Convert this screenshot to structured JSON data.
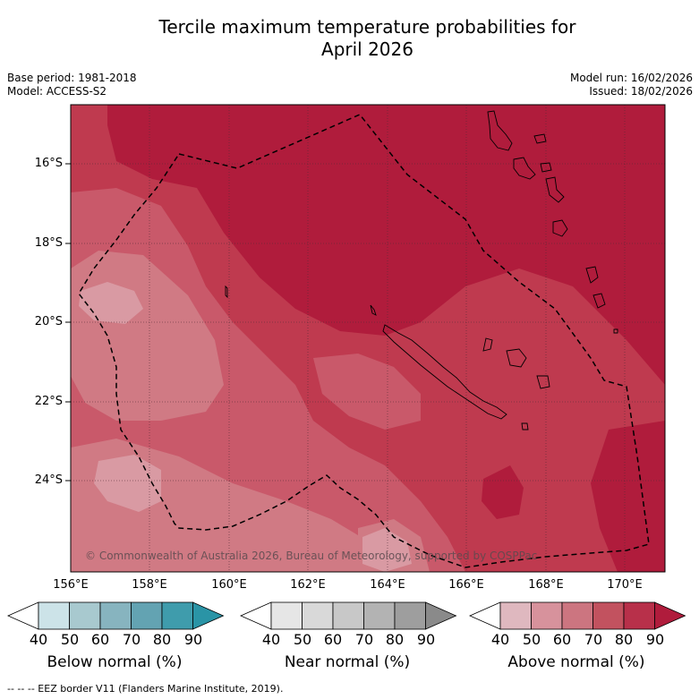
{
  "title": [
    "Tercile maximum temperature probabilities for",
    "April 2026"
  ],
  "base_period": "Base period: 1981-2018",
  "model": "Model: ACCESS-S2",
  "model_run": "Model run: 16/02/2026",
  "issued": "Issued: 18/02/2026",
  "latitude_labels": [
    "16°S",
    "18°S",
    "20°S",
    "22°S",
    "24°S"
  ],
  "longitude_labels": [
    "156°E",
    "158°E",
    "160°E",
    "162°E",
    "164°E",
    "166°E",
    "168°E",
    "170°E"
  ],
  "copyright": "© Commonwealth of Australia 2026, Bureau of Meteorology, supported by COSPPac",
  "legend": {
    "below": {
      "label": "Below normal (%)",
      "ticks": [
        "40",
        "50",
        "60",
        "70",
        "80",
        "90"
      ],
      "colors": [
        "#ffffff",
        "#cce3e8",
        "#a8c9cf",
        "#87b4bf",
        "#63a3b2",
        "#3f9cac",
        "#2a94a6"
      ]
    },
    "near": {
      "label": "Near normal (%)",
      "ticks": [
        "40",
        "50",
        "60",
        "70",
        "80",
        "90"
      ],
      "colors": [
        "#ffffff",
        "#e6e6e6",
        "#d9d9d9",
        "#c8c8c8",
        "#b3b3b3",
        "#9e9e9e",
        "#8a8a8a"
      ]
    },
    "above": {
      "label": "Above normal (%)",
      "ticks": [
        "40",
        "50",
        "60",
        "70",
        "80",
        "90"
      ],
      "colors": [
        "#ffffff",
        "#dfb8bf",
        "#d7929c",
        "#cc7580",
        "#c2525f",
        "#b8304a",
        "#b01c3c"
      ]
    }
  },
  "footer": "--  --  -- EEZ border V11 (Flanders Marine Institute, 2019).",
  "colors": {
    "p90": "#b01c3c",
    "p80": "#bf3a4f",
    "p70": "#c9596a",
    "p60": "#d07a84",
    "p50": "#d99aa3",
    "p40": "#e0b4ba",
    "grid": "#4d2a33",
    "coast": "#000000"
  }
}
